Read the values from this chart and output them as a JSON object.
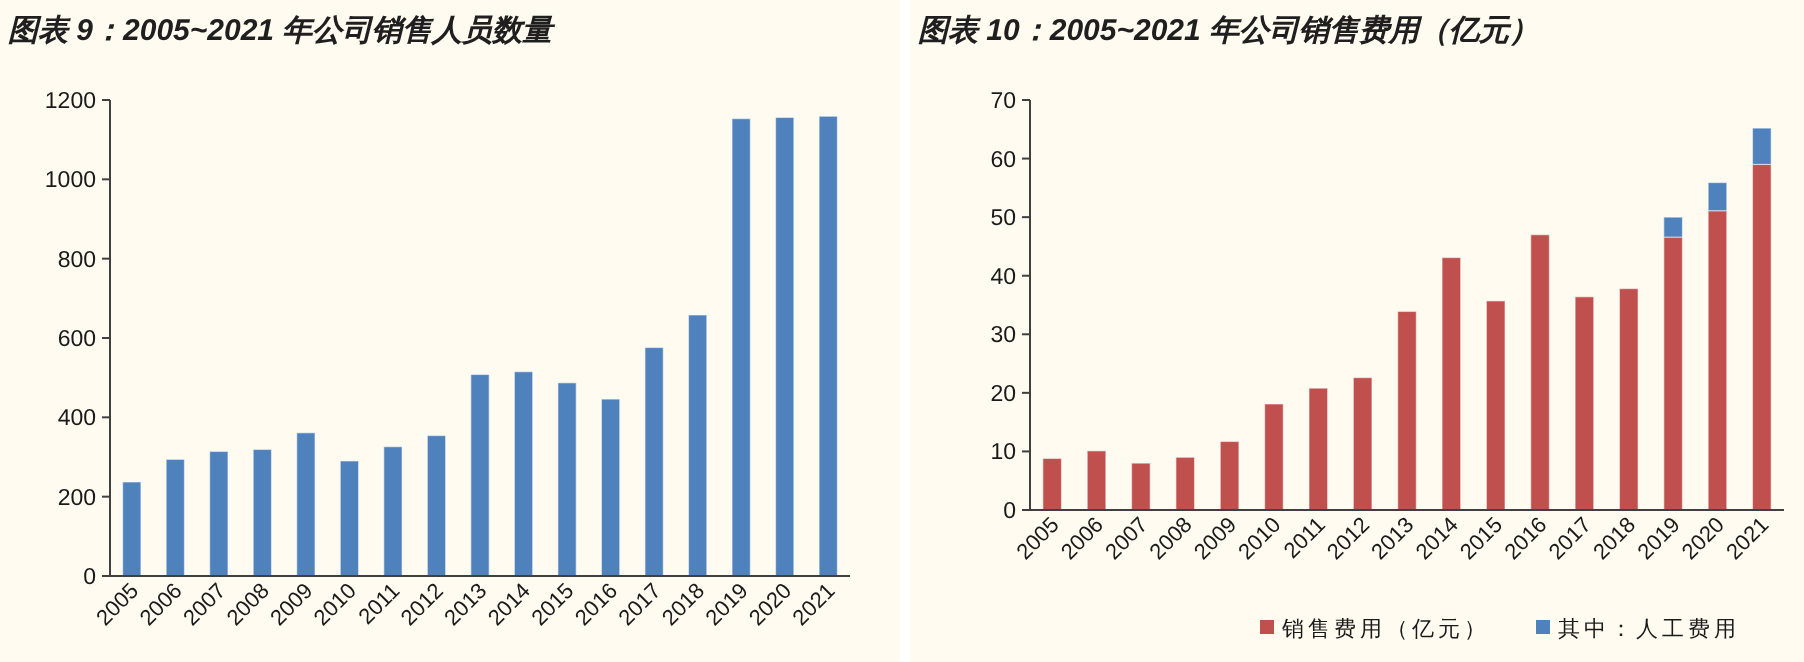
{
  "chart_data": [
    {
      "type": "bar",
      "title": "图表 9：2005~2021 年公司销售人员数量",
      "categories": [
        "2005",
        "2006",
        "2007",
        "2008",
        "2009",
        "2010",
        "2011",
        "2012",
        "2013",
        "2014",
        "2015",
        "2016",
        "2017",
        "2018",
        "2019",
        "2020",
        "2021"
      ],
      "series": [
        {
          "color": "#4f81bd",
          "values": [
            237,
            294,
            314,
            319,
            361,
            290,
            326,
            354,
            508,
            515,
            487,
            446,
            576,
            658,
            1153,
            1156,
            1159
          ]
        }
      ],
      "ylim": [
        0,
        1200
      ],
      "yticks": [
        0,
        200,
        400,
        600,
        800,
        1000,
        1200
      ],
      "grid": false,
      "legend": false
    },
    {
      "type": "bar",
      "title": "图表 10：2005~2021 年公司销售费用（亿元）",
      "categories": [
        "2005",
        "2006",
        "2007",
        "2008",
        "2009",
        "2010",
        "2011",
        "2012",
        "2013",
        "2014",
        "2015",
        "2016",
        "2017",
        "2018",
        "2019",
        "2020",
        "2021"
      ],
      "stacked": true,
      "series": [
        {
          "name": "销售费用（亿元）",
          "color": "#c0504d",
          "values": [
            8.8,
            10.1,
            8.0,
            9.0,
            11.7,
            18.1,
            20.8,
            22.6,
            33.9,
            43.1,
            35.7,
            47.0,
            36.4,
            37.8,
            46.6,
            51.1,
            59.0
          ]
        },
        {
          "name": "其中：人工费用",
          "color": "#4f81bd",
          "values": [
            null,
            null,
            null,
            null,
            null,
            null,
            null,
            null,
            null,
            null,
            null,
            null,
            null,
            null,
            3.4,
            4.8,
            6.2
          ]
        }
      ],
      "ylim": [
        0,
        70
      ],
      "yticks": [
        0,
        10,
        20,
        30,
        40,
        50,
        60,
        70
      ],
      "grid": false,
      "legend": "bottom"
    }
  ]
}
